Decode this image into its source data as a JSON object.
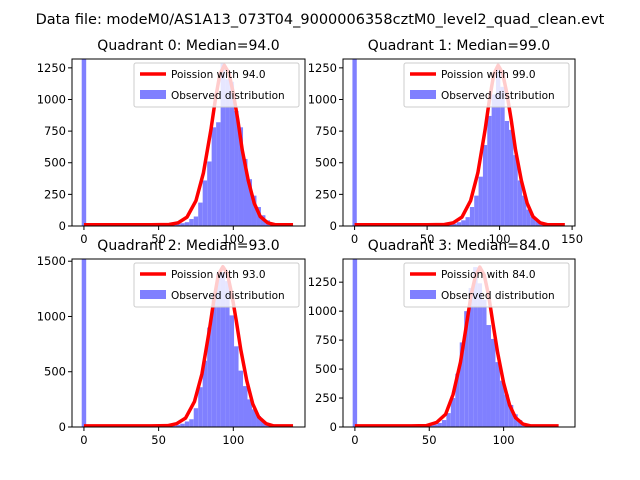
{
  "figure": {
    "suptitle": "Data file: modeM0/AS1A13_073T04_9000006358cztM0_level2_quad_clean.evt"
  },
  "colors": {
    "hist": "#8080ff",
    "poisson": "#ff0000",
    "axis": "#000000"
  },
  "chart_data": [
    {
      "type": "bar",
      "title": "Quadrant 0: Median=94.0",
      "xlabel": "",
      "ylabel": "",
      "xlim": [
        -8,
        148
      ],
      "ylim": [
        0,
        1320
      ],
      "xticks": [
        0,
        50,
        100
      ],
      "yticks": [
        0,
        250,
        500,
        750,
        1000,
        1250
      ],
      "legend": {
        "position": "upper right",
        "entries": [
          "Poission with 94.0",
          "Observed distribution"
        ]
      },
      "median": 94.0,
      "bin_width": 3,
      "hist": [
        [
          0,
          1320
        ],
        [
          57,
          5
        ],
        [
          60,
          8
        ],
        [
          63,
          14
        ],
        [
          66,
          22
        ],
        [
          69,
          30
        ],
        [
          72,
          55
        ],
        [
          75,
          75
        ],
        [
          78,
          185
        ],
        [
          81,
          360
        ],
        [
          84,
          510
        ],
        [
          87,
          780
        ],
        [
          90,
          820
        ],
        [
          93,
          1290
        ],
        [
          96,
          1160
        ],
        [
          99,
          1140
        ],
        [
          102,
          910
        ],
        [
          105,
          780
        ],
        [
          108,
          530
        ],
        [
          111,
          370
        ],
        [
          114,
          240
        ],
        [
          117,
          150
        ],
        [
          120,
          85
        ],
        [
          123,
          45
        ],
        [
          126,
          22
        ],
        [
          129,
          10
        ],
        [
          132,
          4
        ]
      ],
      "poisson": [
        [
          0,
          10
        ],
        [
          45,
          10
        ],
        [
          57,
          12
        ],
        [
          63,
          25
        ],
        [
          69,
          70
        ],
        [
          75,
          200
        ],
        [
          80,
          420
        ],
        [
          85,
          760
        ],
        [
          88,
          1000
        ],
        [
          91,
          1200
        ],
        [
          94,
          1270
        ],
        [
          97,
          1210
        ],
        [
          100,
          1050
        ],
        [
          103,
          840
        ],
        [
          106,
          600
        ],
        [
          110,
          360
        ],
        [
          114,
          180
        ],
        [
          118,
          75
        ],
        [
          123,
          25
        ],
        [
          128,
          10
        ],
        [
          140,
          10
        ]
      ]
    },
    {
      "type": "bar",
      "title": "Quadrant 1: Median=99.0",
      "xlabel": "",
      "ylabel": "",
      "xlim": [
        -8,
        152
      ],
      "ylim": [
        0,
        1320
      ],
      "xticks": [
        0,
        50,
        100,
        150
      ],
      "yticks": [
        0,
        250,
        500,
        750,
        1000,
        1250
      ],
      "legend": {
        "position": "upper right",
        "entries": [
          "Poission with 99.0",
          "Observed distribution"
        ]
      },
      "median": 99.0,
      "bin_width": 3,
      "hist": [
        [
          0,
          1320
        ],
        [
          57,
          4
        ],
        [
          63,
          8
        ],
        [
          66,
          12
        ],
        [
          69,
          18
        ],
        [
          72,
          30
        ],
        [
          75,
          45
        ],
        [
          78,
          70
        ],
        [
          81,
          150
        ],
        [
          84,
          240
        ],
        [
          87,
          390
        ],
        [
          90,
          640
        ],
        [
          93,
          870
        ],
        [
          96,
          1040
        ],
        [
          99,
          1250
        ],
        [
          102,
          1100
        ],
        [
          105,
          830
        ],
        [
          108,
          760
        ],
        [
          111,
          560
        ],
        [
          114,
          360
        ],
        [
          117,
          240
        ],
        [
          120,
          130
        ],
        [
          123,
          70
        ],
        [
          126,
          40
        ],
        [
          129,
          20
        ],
        [
          132,
          10
        ],
        [
          135,
          5
        ]
      ],
      "poisson": [
        [
          0,
          10
        ],
        [
          50,
          10
        ],
        [
          62,
          12
        ],
        [
          68,
          25
        ],
        [
          74,
          70
        ],
        [
          80,
          200
        ],
        [
          85,
          420
        ],
        [
          90,
          760
        ],
        [
          93,
          1000
        ],
        [
          96,
          1200
        ],
        [
          99,
          1270
        ],
        [
          102,
          1210
        ],
        [
          105,
          1050
        ],
        [
          108,
          840
        ],
        [
          111,
          600
        ],
        [
          115,
          360
        ],
        [
          119,
          180
        ],
        [
          123,
          75
        ],
        [
          128,
          25
        ],
        [
          133,
          10
        ],
        [
          145,
          10
        ]
      ]
    },
    {
      "type": "bar",
      "title": "Quadrant 2: Median=93.0",
      "xlabel": "",
      "ylabel": "",
      "xlim": [
        -8,
        148
      ],
      "ylim": [
        0,
        1520
      ],
      "xticks": [
        0,
        50,
        100
      ],
      "yticks": [
        0,
        500,
        1000,
        1500
      ],
      "legend": {
        "position": "upper right",
        "entries": [
          "Poission with 93.0",
          "Observed distribution"
        ]
      },
      "median": 93.0,
      "bin_width": 3,
      "hist": [
        [
          0,
          1520
        ],
        [
          54,
          5
        ],
        [
          57,
          8
        ],
        [
          60,
          12
        ],
        [
          63,
          20
        ],
        [
          66,
          30
        ],
        [
          69,
          50
        ],
        [
          72,
          70
        ],
        [
          75,
          170
        ],
        [
          78,
          360
        ],
        [
          81,
          600
        ],
        [
          84,
          900
        ],
        [
          87,
          1200
        ],
        [
          90,
          1390
        ],
        [
          93,
          1400
        ],
        [
          96,
          1320
        ],
        [
          99,
          1010
        ],
        [
          102,
          730
        ],
        [
          105,
          510
        ],
        [
          108,
          370
        ],
        [
          111,
          250
        ],
        [
          114,
          160
        ],
        [
          117,
          100
        ],
        [
          120,
          55
        ],
        [
          123,
          30
        ],
        [
          126,
          15
        ],
        [
          129,
          6
        ]
      ],
      "poisson": [
        [
          0,
          10
        ],
        [
          45,
          10
        ],
        [
          56,
          12
        ],
        [
          62,
          30
        ],
        [
          68,
          80
        ],
        [
          74,
          230
        ],
        [
          79,
          480
        ],
        [
          84,
          880
        ],
        [
          87,
          1150
        ],
        [
          90,
          1380
        ],
        [
          93,
          1450
        ],
        [
          96,
          1390
        ],
        [
          99,
          1200
        ],
        [
          102,
          960
        ],
        [
          105,
          700
        ],
        [
          109,
          420
        ],
        [
          113,
          210
        ],
        [
          117,
          90
        ],
        [
          122,
          30
        ],
        [
          127,
          10
        ],
        [
          140,
          10
        ]
      ]
    },
    {
      "type": "bar",
      "title": "Quadrant 3: Median=84.0",
      "xlabel": "",
      "ylabel": "",
      "xlim": [
        -8,
        148
      ],
      "ylim": [
        0,
        1450
      ],
      "xticks": [
        0,
        50,
        100
      ],
      "yticks": [
        0,
        250,
        500,
        750,
        1000,
        1250
      ],
      "legend": {
        "position": "upper right",
        "entries": [
          "Poission with 84.0",
          "Observed distribution"
        ]
      },
      "median": 84.0,
      "bin_width": 3,
      "hist": [
        [
          0,
          1450
        ],
        [
          45,
          4
        ],
        [
          48,
          8
        ],
        [
          51,
          14
        ],
        [
          54,
          22
        ],
        [
          57,
          35
        ],
        [
          60,
          60
        ],
        [
          63,
          120
        ],
        [
          66,
          250
        ],
        [
          69,
          460
        ],
        [
          72,
          730
        ],
        [
          75,
          1000
        ],
        [
          78,
          1200
        ],
        [
          81,
          1380
        ],
        [
          84,
          1240
        ],
        [
          87,
          1100
        ],
        [
          90,
          880
        ],
        [
          93,
          760
        ],
        [
          96,
          560
        ],
        [
          99,
          400
        ],
        [
          102,
          280
        ],
        [
          105,
          190
        ],
        [
          108,
          110
        ],
        [
          111,
          60
        ],
        [
          114,
          30
        ],
        [
          117,
          14
        ],
        [
          120,
          6
        ]
      ],
      "poisson": [
        [
          0,
          10
        ],
        [
          38,
          10
        ],
        [
          48,
          12
        ],
        [
          55,
          40
        ],
        [
          61,
          110
        ],
        [
          66,
          280
        ],
        [
          71,
          560
        ],
        [
          75,
          880
        ],
        [
          78,
          1130
        ],
        [
          81,
          1300
        ],
        [
          84,
          1380
        ],
        [
          87,
          1310
        ],
        [
          90,
          1130
        ],
        [
          93,
          880
        ],
        [
          96,
          640
        ],
        [
          100,
          380
        ],
        [
          104,
          190
        ],
        [
          108,
          80
        ],
        [
          113,
          25
        ],
        [
          118,
          10
        ],
        [
          137,
          10
        ]
      ]
    }
  ]
}
